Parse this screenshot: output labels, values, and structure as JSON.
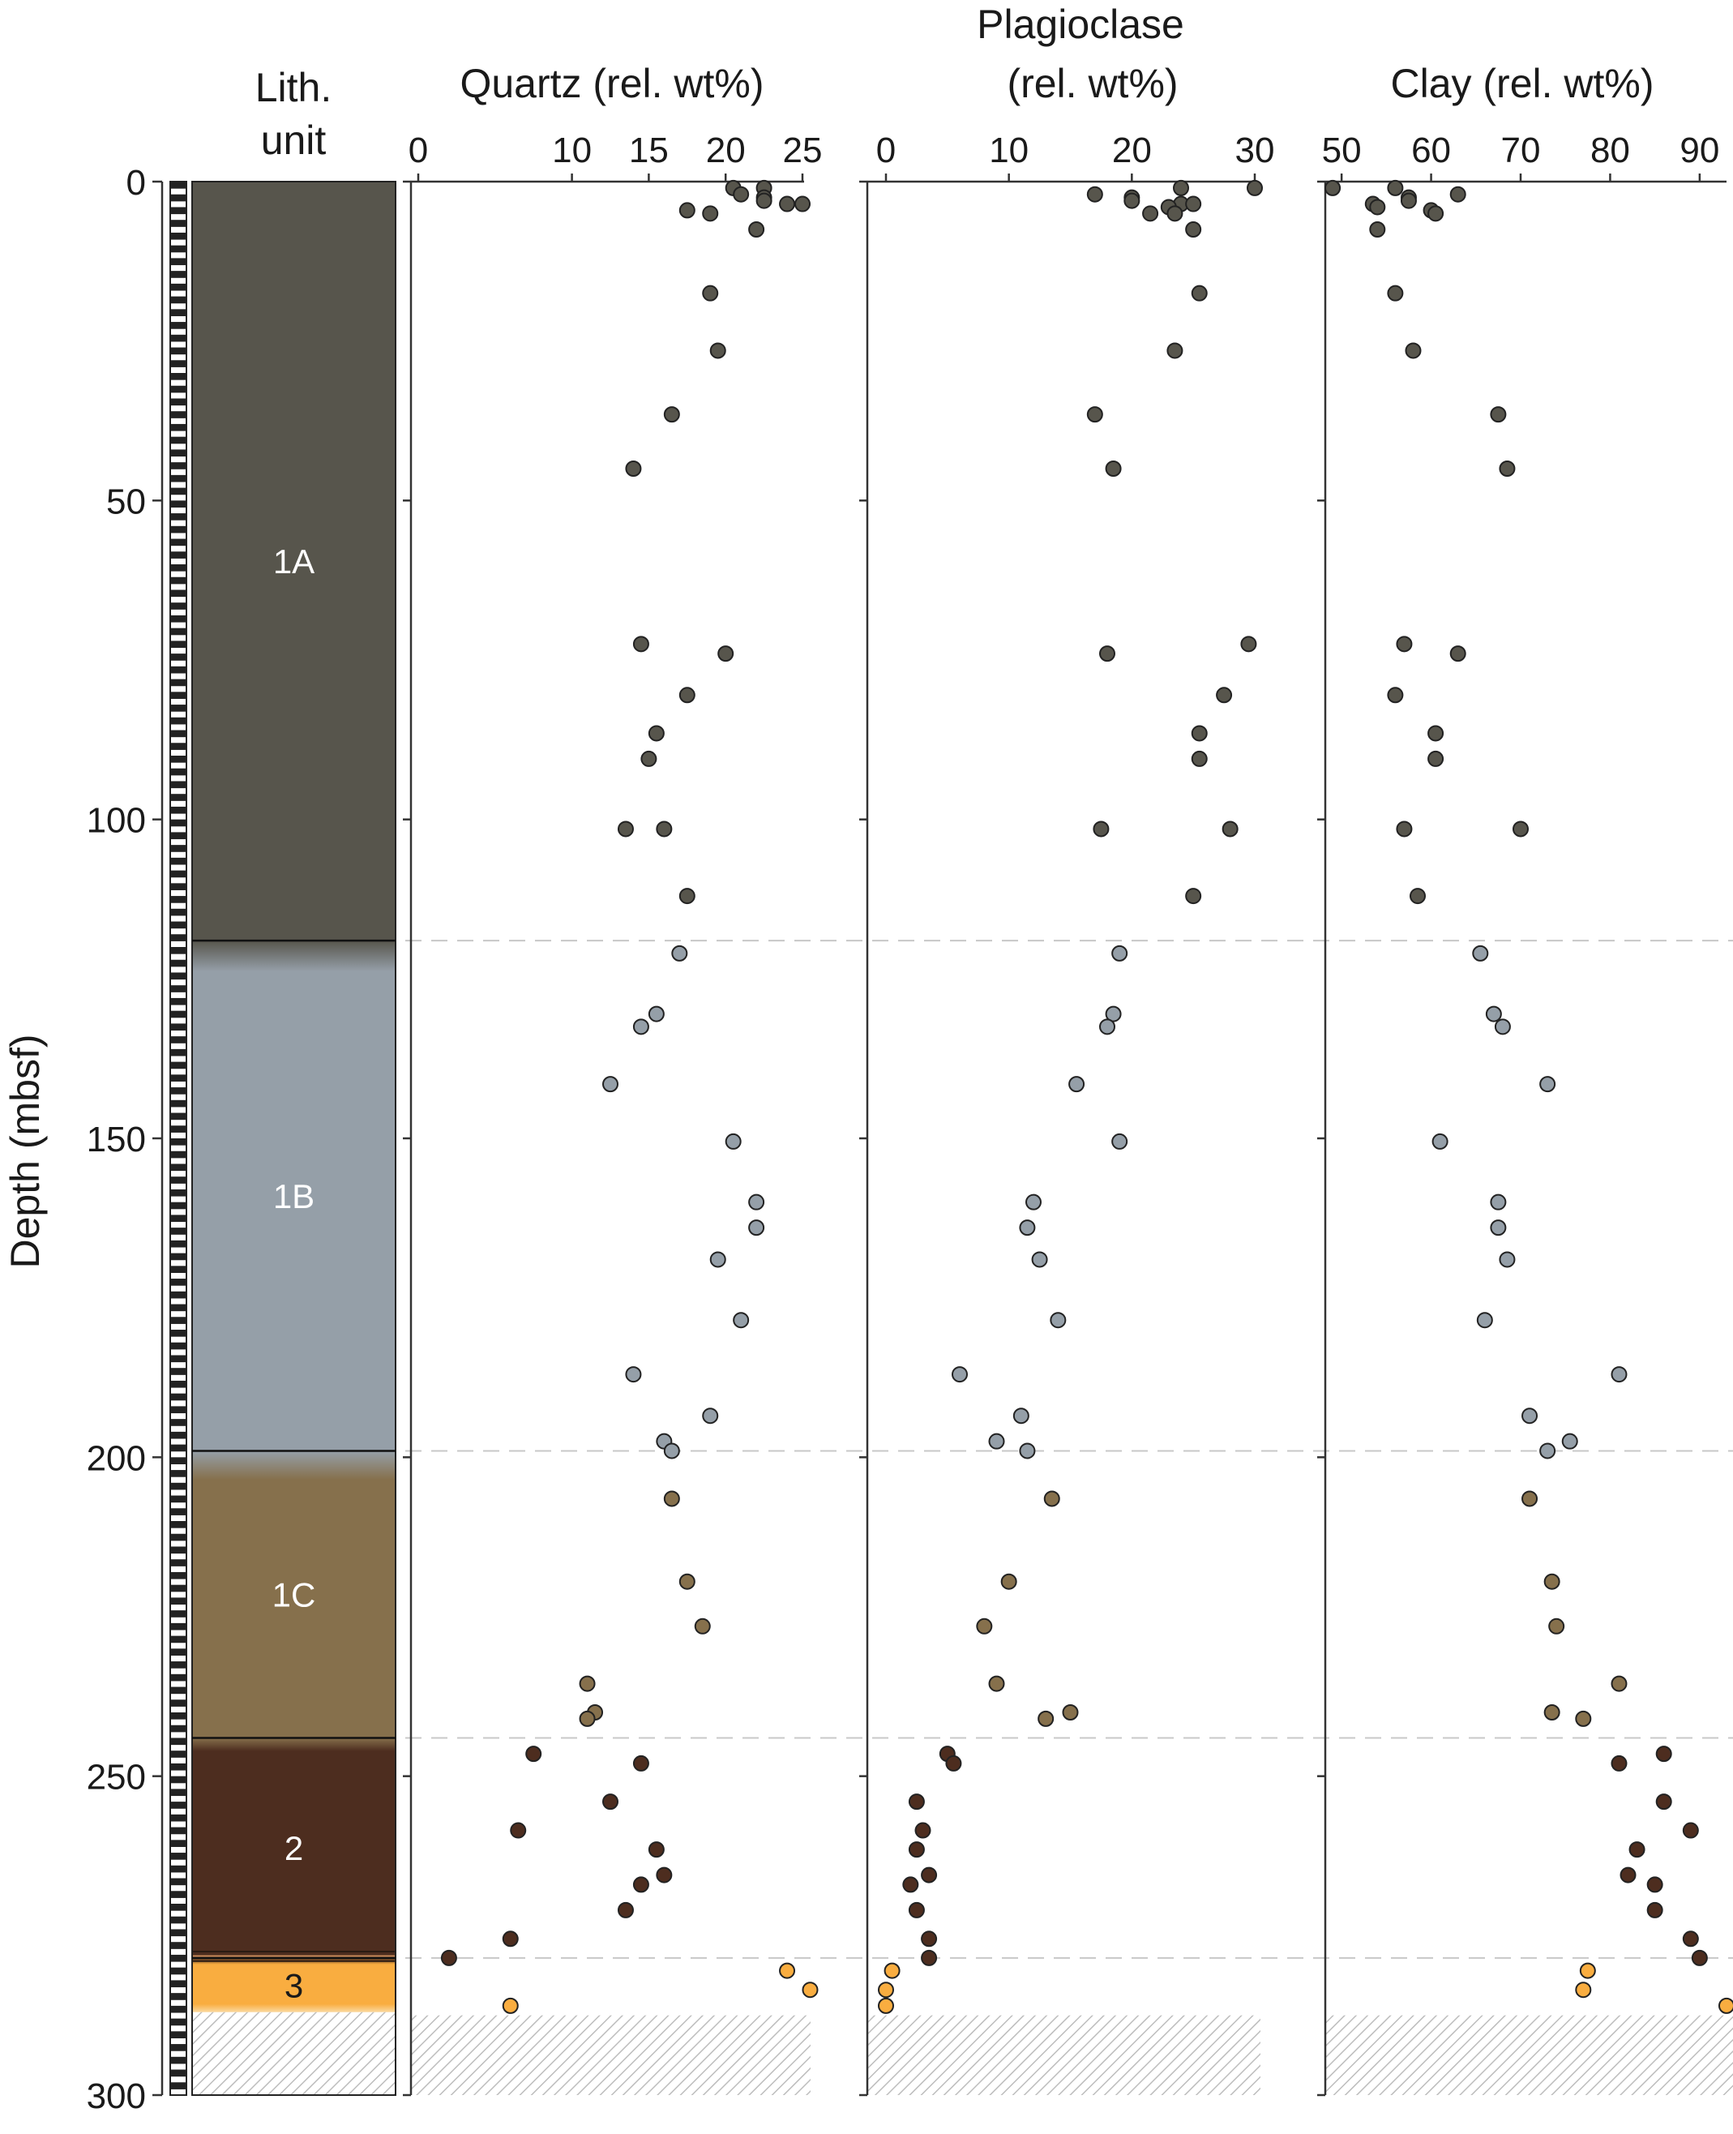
{
  "lith_column": {
    "header_line1": "Lith.",
    "header_line2": "unit"
  },
  "y_axis": {
    "label": "Depth (mbsf)",
    "ticks": [
      0,
      50,
      100,
      150,
      200,
      250,
      300
    ]
  },
  "units": [
    {
      "name": "1A",
      "top": 0,
      "bottom": 119,
      "color": "#57554c"
    },
    {
      "name": "1B",
      "top": 119,
      "bottom": 199,
      "color": "#959fa8"
    },
    {
      "name": "1C",
      "top": 199,
      "bottom": 244,
      "color": "#86704c"
    },
    {
      "name": "2",
      "top": 244,
      "bottom": 278.5,
      "color": "#4d2d1f"
    },
    {
      "name": "3",
      "top": 278.5,
      "bottom": 287,
      "color": "#f9ad40"
    }
  ],
  "colors": {
    "unit_1A": "#57554c",
    "unit_1B": "#959fa8",
    "unit_1C": "#86704c",
    "unit_2": "#4d2d1f",
    "unit_3": "#f9ad40",
    "no_recovery_hatch": "#bbbbbb",
    "boundary_dash": "#c8c8c8"
  },
  "chart_data": [
    {
      "type": "scatter",
      "title": "Quartz (rel. wt%)",
      "xlim": [
        0,
        25
      ],
      "xticks": [
        0,
        10,
        15,
        20,
        25
      ],
      "ylim": [
        0,
        300
      ],
      "ylabel": "Depth (mbsf)",
      "y_inverted": true,
      "series": [
        {
          "unit": "1A",
          "points": [
            [
              22.5,
              1
            ],
            [
              20.5,
              1
            ],
            [
              21,
              2
            ],
            [
              22.5,
              2.5
            ],
            [
              22.5,
              3
            ],
            [
              24,
              3.5
            ],
            [
              25,
              3.5
            ],
            [
              17.5,
              4.5
            ],
            [
              19,
              5
            ],
            [
              22,
              7.5
            ],
            [
              19,
              17.5
            ],
            [
              19.5,
              26.5
            ],
            [
              16.5,
              36.5
            ],
            [
              14,
              45
            ],
            [
              14.5,
              72.5
            ],
            [
              20,
              74
            ],
            [
              17.5,
              80.5
            ],
            [
              15.5,
              86.5
            ],
            [
              15,
              90.5
            ],
            [
              13.5,
              101.5
            ],
            [
              16,
              101.5
            ],
            [
              17.5,
              112
            ]
          ]
        },
        {
          "unit": "1B",
          "points": [
            [
              17,
              121
            ],
            [
              15.5,
              130.5
            ],
            [
              14.5,
              132.5
            ],
            [
              12.5,
              141.5
            ],
            [
              20.5,
              150.5
            ],
            [
              22,
              160
            ],
            [
              22,
              164
            ],
            [
              19.5,
              169
            ],
            [
              21,
              178.5
            ],
            [
              14,
              187
            ],
            [
              19,
              193.5
            ],
            [
              16,
              197.5
            ],
            [
              16.5,
              199
            ]
          ]
        },
        {
          "unit": "1C",
          "points": [
            [
              16.5,
              206.5
            ],
            [
              17.5,
              219.5
            ],
            [
              18.5,
              226.5
            ],
            [
              11,
              235.5
            ],
            [
              11.5,
              240
            ],
            [
              11,
              241
            ]
          ]
        },
        {
          "unit": "2",
          "points": [
            [
              7.5,
              246.5
            ],
            [
              14.5,
              248
            ],
            [
              12.5,
              254
            ],
            [
              6.5,
              258.5
            ],
            [
              15.5,
              261.5
            ],
            [
              16,
              265.5
            ],
            [
              14.5,
              267
            ],
            [
              13.5,
              271
            ],
            [
              6,
              275.5
            ],
            [
              2,
              278.5
            ]
          ]
        },
        {
          "unit": "3",
          "points": [
            [
              24,
              280.5
            ],
            [
              25.5,
              283.5
            ],
            [
              6,
              286
            ]
          ]
        }
      ]
    },
    {
      "type": "scatter",
      "title": "Plagioclase (rel. wt%)",
      "xlim": [
        0,
        30
      ],
      "xticks": [
        0,
        10,
        20,
        30
      ],
      "ylim": [
        0,
        300
      ],
      "y_inverted": true,
      "series": [
        {
          "unit": "1A",
          "points": [
            [
              24,
              1
            ],
            [
              30,
              1
            ],
            [
              17,
              2
            ],
            [
              20,
              2.5
            ],
            [
              20,
              3
            ],
            [
              24,
              3.5
            ],
            [
              25,
              3.5
            ],
            [
              23,
              4
            ],
            [
              21.5,
              5
            ],
            [
              23.5,
              5
            ],
            [
              25,
              7.5
            ],
            [
              25.5,
              17.5
            ],
            [
              23.5,
              26.5
            ],
            [
              17,
              36.5
            ],
            [
              18.5,
              45
            ],
            [
              29.5,
              72.5
            ],
            [
              18,
              74
            ],
            [
              27.5,
              80.5
            ],
            [
              25.5,
              86.5
            ],
            [
              25.5,
              90.5
            ],
            [
              17.5,
              101.5
            ],
            [
              28,
              101.5
            ],
            [
              25,
              112
            ]
          ]
        },
        {
          "unit": "1B",
          "points": [
            [
              19,
              121
            ],
            [
              18.5,
              130.5
            ],
            [
              18,
              132.5
            ],
            [
              15.5,
              141.5
            ],
            [
              19,
              150.5
            ],
            [
              12,
              160
            ],
            [
              11.5,
              164
            ],
            [
              12.5,
              169
            ],
            [
              14,
              178.5
            ],
            [
              6,
              187
            ],
            [
              11,
              193.5
            ],
            [
              9,
              197.5
            ],
            [
              11.5,
              199
            ]
          ]
        },
        {
          "unit": "1C",
          "points": [
            [
              13.5,
              206.5
            ],
            [
              10,
              219.5
            ],
            [
              8,
              226.5
            ],
            [
              9,
              235.5
            ],
            [
              15,
              240
            ],
            [
              13,
              241
            ]
          ]
        },
        {
          "unit": "2",
          "points": [
            [
              5,
              246.5
            ],
            [
              5.5,
              248
            ],
            [
              2.5,
              254
            ],
            [
              3,
              258.5
            ],
            [
              2.5,
              261.5
            ],
            [
              3.5,
              265.5
            ],
            [
              2,
              267
            ],
            [
              2.5,
              271
            ],
            [
              3.5,
              275.5
            ],
            [
              3.5,
              278.5
            ]
          ]
        },
        {
          "unit": "3",
          "points": [
            [
              0.5,
              280.5
            ],
            [
              0,
              283.5
            ],
            [
              0,
              286
            ]
          ]
        }
      ]
    },
    {
      "type": "scatter",
      "title": "Clay (rel. wt%)",
      "xlim": [
        47,
        93
      ],
      "xticks": [
        50,
        60,
        70,
        80,
        90
      ],
      "ylim": [
        0,
        300
      ],
      "y_inverted": true,
      "series": [
        {
          "unit": "1A",
          "points": [
            [
              49,
              1
            ],
            [
              56,
              1
            ],
            [
              63,
              2
            ],
            [
              57.5,
              2.5
            ],
            [
              57.5,
              3
            ],
            [
              53.5,
              3.5
            ],
            [
              54,
              4
            ],
            [
              60,
              4.5
            ],
            [
              60.5,
              5
            ],
            [
              54,
              7.5
            ],
            [
              56,
              17.5
            ],
            [
              58,
              26.5
            ],
            [
              67.5,
              36.5
            ],
            [
              68.5,
              45
            ],
            [
              57,
              72.5
            ],
            [
              63,
              74
            ],
            [
              56,
              80.5
            ],
            [
              60.5,
              86.5
            ],
            [
              60.5,
              90.5
            ],
            [
              57,
              101.5
            ],
            [
              70,
              101.5
            ],
            [
              58.5,
              112
            ]
          ]
        },
        {
          "unit": "1B",
          "points": [
            [
              65.5,
              121
            ],
            [
              67,
              130.5
            ],
            [
              68,
              132.5
            ],
            [
              73,
              141.5
            ],
            [
              61,
              150.5
            ],
            [
              67.5,
              160
            ],
            [
              67.5,
              164
            ],
            [
              68.5,
              169
            ],
            [
              66,
              178.5
            ],
            [
              81,
              187
            ],
            [
              71,
              193.5
            ],
            [
              75.5,
              197.5
            ],
            [
              73,
              199
            ]
          ]
        },
        {
          "unit": "1C",
          "points": [
            [
              71,
              206.5
            ],
            [
              73.5,
              219.5
            ],
            [
              74,
              226.5
            ],
            [
              81,
              235.5
            ],
            [
              73.5,
              240
            ],
            [
              77,
              241
            ]
          ]
        },
        {
          "unit": "2",
          "points": [
            [
              86,
              246.5
            ],
            [
              81,
              248
            ],
            [
              86,
              254
            ],
            [
              89,
              258.5
            ],
            [
              83,
              261.5
            ],
            [
              82,
              265.5
            ],
            [
              85,
              267
            ],
            [
              85,
              271
            ],
            [
              89,
              275.5
            ],
            [
              90,
              278.5
            ]
          ]
        },
        {
          "unit": "3",
          "points": [
            [
              77.5,
              280.5
            ],
            [
              77,
              283.5
            ],
            [
              93,
              286
            ]
          ]
        }
      ]
    }
  ]
}
